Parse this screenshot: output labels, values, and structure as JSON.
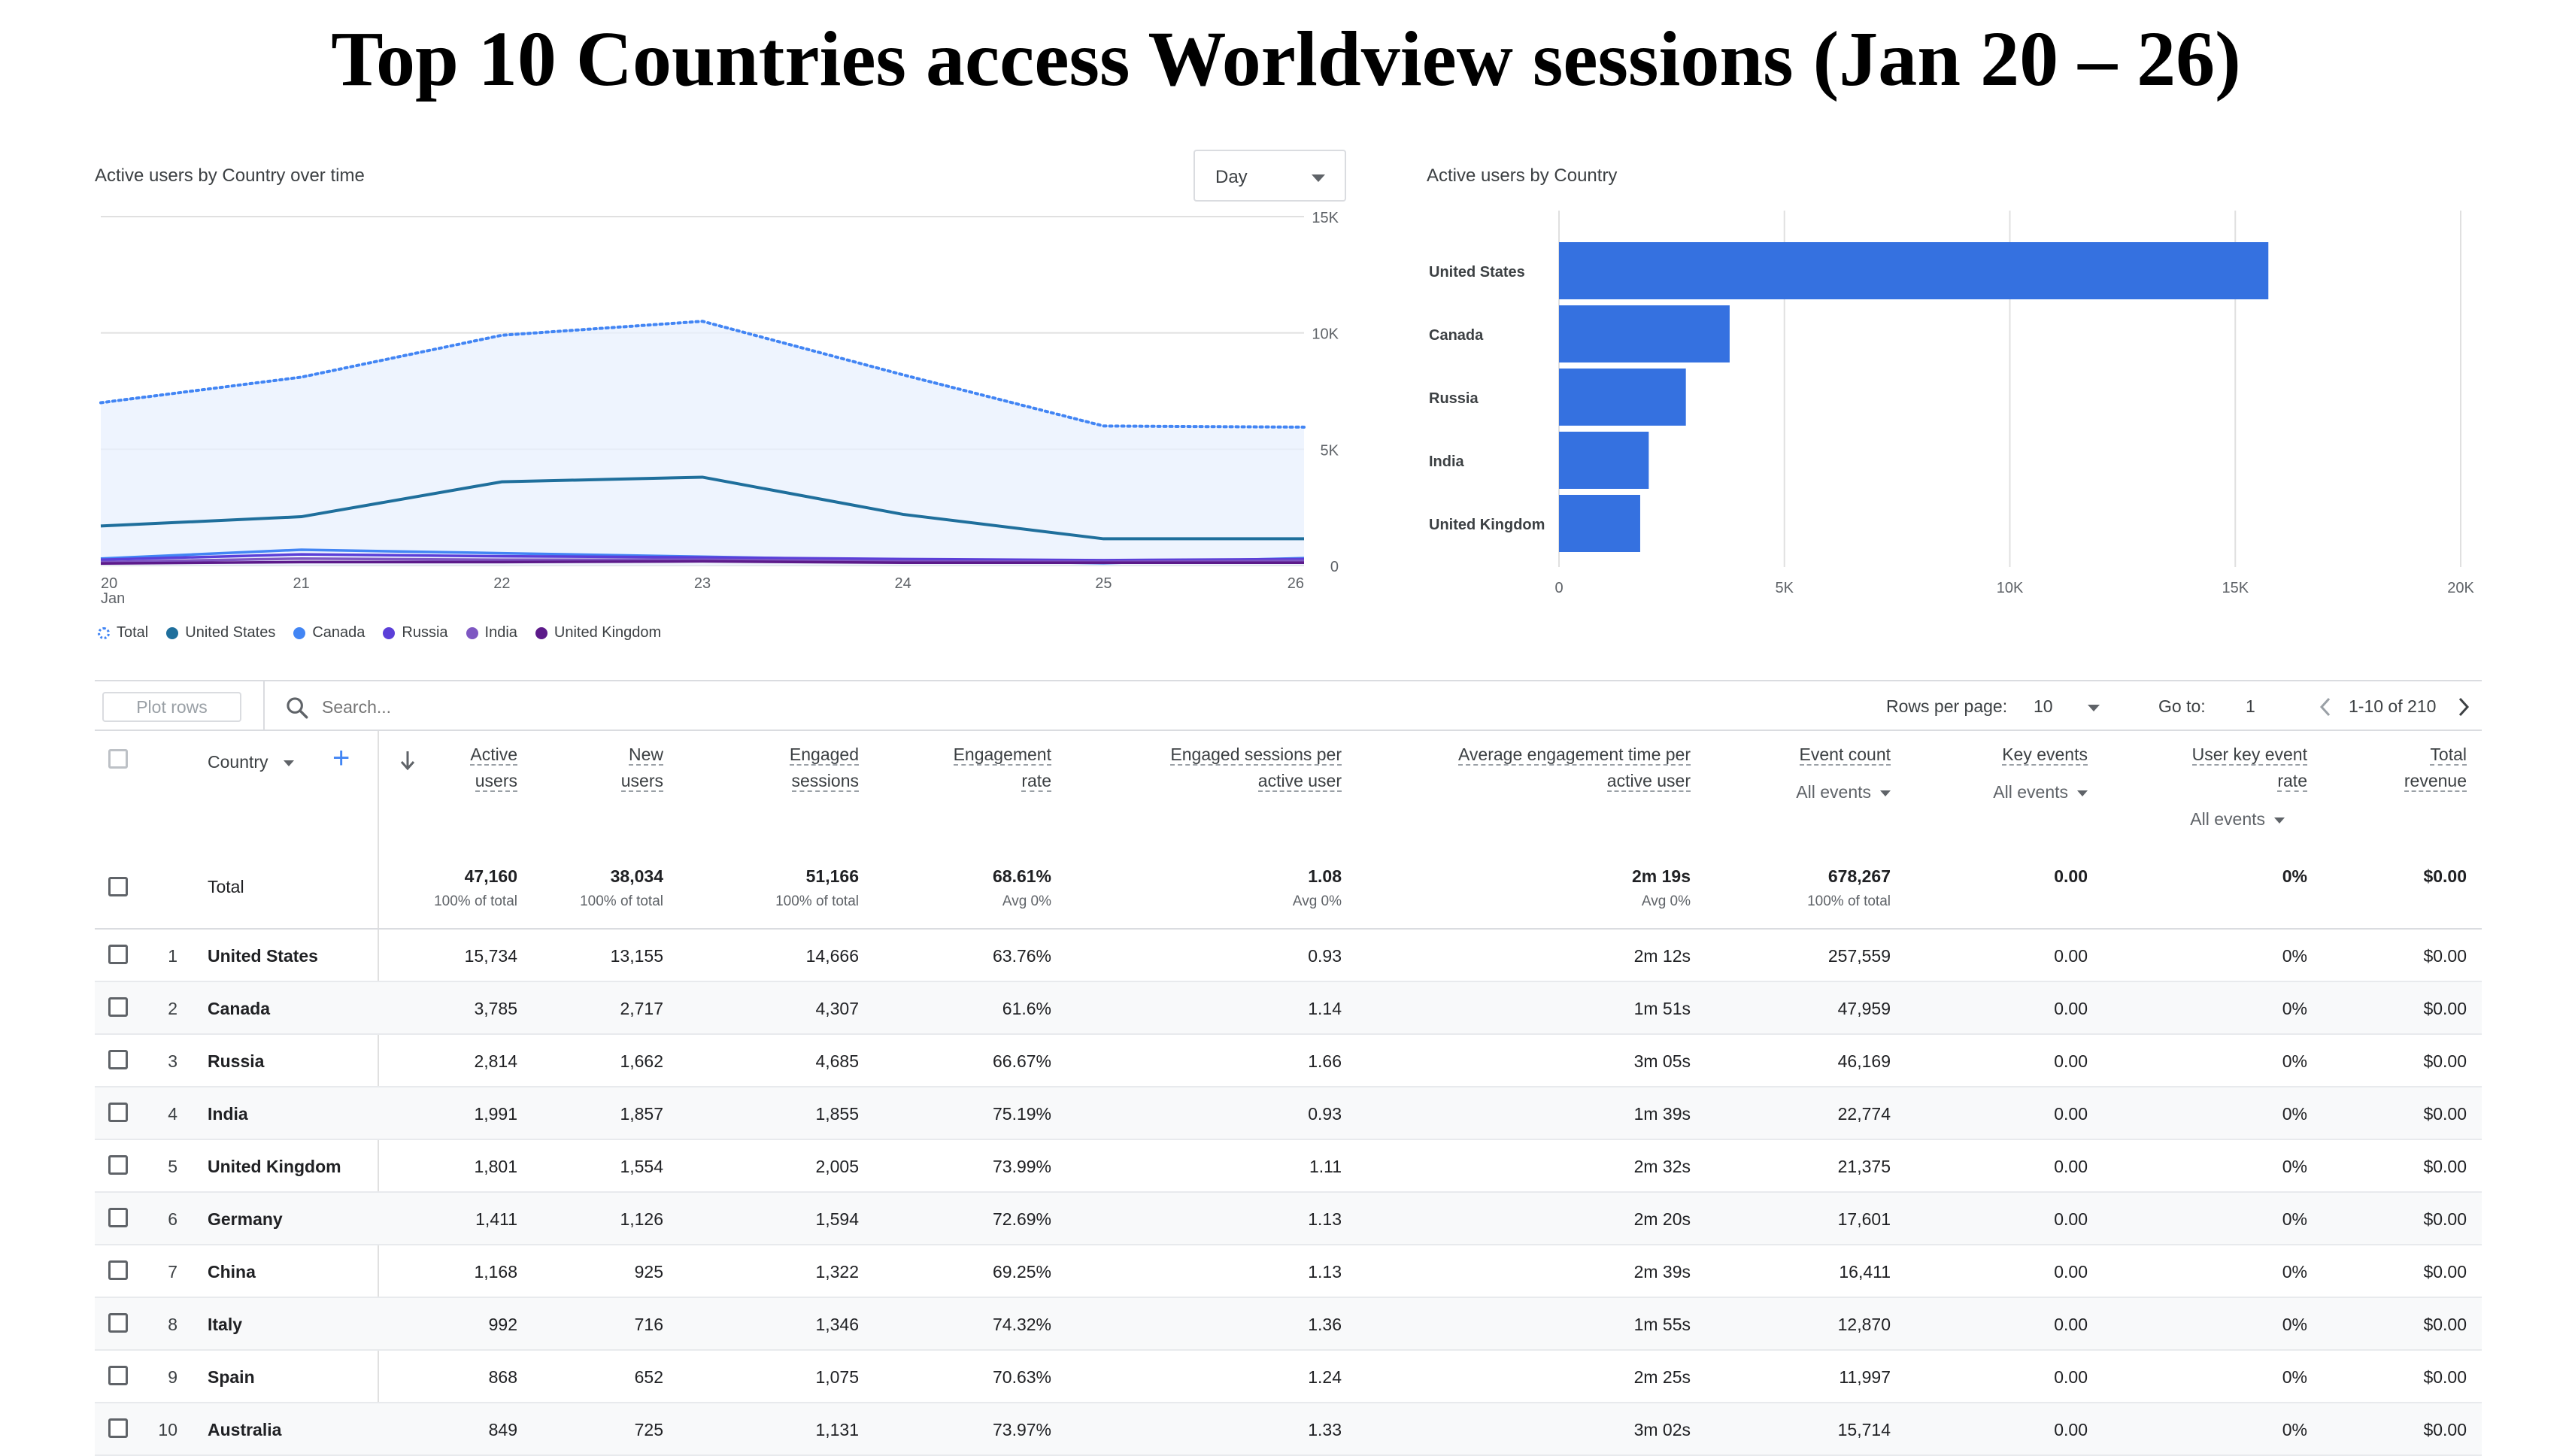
{
  "page": {
    "title": "Top 10 Countries access Worldview sessions (Jan 20 – 26)"
  },
  "line_card": {
    "title": "Active users by Country over time",
    "granularity": "Day",
    "x_month": "Jan"
  },
  "bar_card": {
    "title": "Active users by Country"
  },
  "colors": {
    "total": "#4285f4",
    "total_fill": "#e8f0fe",
    "united_states": "#1f6f9c",
    "canada": "#4285f4",
    "russia": "#5b3fd8",
    "india": "#7e57c2",
    "united_kingdom": "#5c1a8a",
    "bar": "#3571e0"
  },
  "chart_data": [
    {
      "type": "line",
      "title": "Active users by Country over time",
      "x": [
        "20",
        "21",
        "22",
        "23",
        "24",
        "25",
        "26"
      ],
      "x_month_label": "Jan",
      "y_ticks": [
        "0",
        "5K",
        "10K",
        "15K"
      ],
      "ylim": [
        0,
        15000
      ],
      "grid": true,
      "legend_position": "bottom",
      "series": [
        {
          "name": "Total",
          "style": "dotted-area",
          "values": [
            7000,
            8100,
            9900,
            10500,
            8200,
            6000,
            5950
          ]
        },
        {
          "name": "United States",
          "values": [
            1700,
            2100,
            3600,
            3800,
            2200,
            1150,
            1150
          ]
        },
        {
          "name": "Canada",
          "values": [
            300,
            680,
            530,
            380,
            220,
            100,
            320
          ]
        },
        {
          "name": "Russia",
          "values": [
            250,
            480,
            400,
            350,
            280,
            230,
            280
          ]
        },
        {
          "name": "India",
          "values": [
            150,
            300,
            250,
            250,
            180,
            160,
            200
          ]
        },
        {
          "name": "United Kingdom",
          "values": [
            90,
            150,
            150,
            180,
            120,
            120,
            120
          ]
        }
      ]
    },
    {
      "type": "bar",
      "orientation": "horizontal",
      "title": "Active users by Country",
      "categories": [
        "United States",
        "Canada",
        "Russia",
        "India",
        "United Kingdom"
      ],
      "values": [
        15734,
        3785,
        2814,
        1991,
        1801
      ],
      "xlim": [
        0,
        20000
      ],
      "x_ticks": [
        "0",
        "5K",
        "10K",
        "15K",
        "20K"
      ],
      "grid": true
    }
  ],
  "toolbar": {
    "plot_rows": "Plot rows",
    "search_placeholder": "Search...",
    "rows_per_page_label": "Rows per page:",
    "rows_per_page": "10",
    "goto_label": "Go to:",
    "goto_value": "1",
    "range": "1-10 of 210"
  },
  "table": {
    "dimension": "Country",
    "columns": [
      {
        "line1": "Active",
        "line2": "users"
      },
      {
        "line1": "New",
        "line2": "users"
      },
      {
        "line1": "Engaged",
        "line2": "sessions"
      },
      {
        "line1": "Engagement",
        "line2": "rate"
      },
      {
        "line1": "Engaged sessions per",
        "line2": "active user"
      },
      {
        "line1": "Average engagement time per",
        "line2": "active user"
      },
      {
        "line1": "Event count",
        "sub": "All events"
      },
      {
        "line1": "Key events",
        "sub": "All events"
      },
      {
        "line1": "User key event",
        "line2": "rate",
        "sub": "All events"
      },
      {
        "line1": "Total",
        "line2": "revenue"
      }
    ],
    "total": {
      "label": "Total",
      "values": [
        "47,160",
        "38,034",
        "51,166",
        "68.61%",
        "1.08",
        "2m 19s",
        "678,267",
        "0.00",
        "0%",
        "$0.00"
      ],
      "subs": [
        "100% of total",
        "100% of total",
        "100% of total",
        "Avg 0%",
        "Avg 0%",
        "Avg 0%",
        "100% of total",
        "",
        "",
        ""
      ]
    },
    "rows": [
      {
        "idx": "1",
        "country": "United States",
        "values": [
          "15,734",
          "13,155",
          "14,666",
          "63.76%",
          "0.93",
          "2m 12s",
          "257,559",
          "0.00",
          "0%",
          "$0.00"
        ]
      },
      {
        "idx": "2",
        "country": "Canada",
        "values": [
          "3,785",
          "2,717",
          "4,307",
          "61.6%",
          "1.14",
          "1m 51s",
          "47,959",
          "0.00",
          "0%",
          "$0.00"
        ]
      },
      {
        "idx": "3",
        "country": "Russia",
        "values": [
          "2,814",
          "1,662",
          "4,685",
          "66.67%",
          "1.66",
          "3m 05s",
          "46,169",
          "0.00",
          "0%",
          "$0.00"
        ]
      },
      {
        "idx": "4",
        "country": "India",
        "values": [
          "1,991",
          "1,857",
          "1,855",
          "75.19%",
          "0.93",
          "1m 39s",
          "22,774",
          "0.00",
          "0%",
          "$0.00"
        ]
      },
      {
        "idx": "5",
        "country": "United Kingdom",
        "values": [
          "1,801",
          "1,554",
          "2,005",
          "73.99%",
          "1.11",
          "2m 32s",
          "21,375",
          "0.00",
          "0%",
          "$0.00"
        ]
      },
      {
        "idx": "6",
        "country": "Germany",
        "values": [
          "1,411",
          "1,126",
          "1,594",
          "72.69%",
          "1.13",
          "2m 20s",
          "17,601",
          "0.00",
          "0%",
          "$0.00"
        ]
      },
      {
        "idx": "7",
        "country": "China",
        "values": [
          "1,168",
          "925",
          "1,322",
          "69.25%",
          "1.13",
          "2m 39s",
          "16,411",
          "0.00",
          "0%",
          "$0.00"
        ]
      },
      {
        "idx": "8",
        "country": "Italy",
        "values": [
          "992",
          "716",
          "1,346",
          "74.32%",
          "1.36",
          "1m 55s",
          "12,870",
          "0.00",
          "0%",
          "$0.00"
        ]
      },
      {
        "idx": "9",
        "country": "Spain",
        "values": [
          "868",
          "652",
          "1,075",
          "70.63%",
          "1.24",
          "2m 25s",
          "11,997",
          "0.00",
          "0%",
          "$0.00"
        ]
      },
      {
        "idx": "10",
        "country": "Australia",
        "values": [
          "849",
          "725",
          "1,131",
          "73.97%",
          "1.33",
          "3m 02s",
          "15,714",
          "0.00",
          "0%",
          "$0.00"
        ]
      }
    ]
  }
}
